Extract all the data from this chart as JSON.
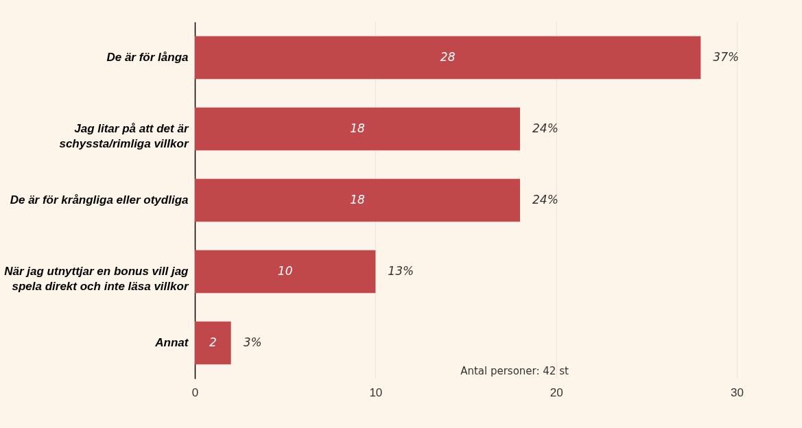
{
  "chart_data": {
    "type": "bar",
    "orientation": "horizontal",
    "categories": [
      "De är för långa",
      "Jag litar på att det är schyssta/rimliga villkor",
      "De är för krångliga eller otydliga",
      "När jag utnyttjar en bonus vill jag spela direkt och inte läsa villkor",
      "Annat"
    ],
    "values": [
      28,
      18,
      18,
      10,
      2
    ],
    "color": "#c0474a",
    "xlim": [
      0,
      30
    ],
    "xticks": [
      0,
      10,
      20,
      30
    ],
    "grid": "x",
    "data_labels": true,
    "annotations": [
      {
        "text": "37%",
        "x": 28,
        "y": "De är för långa"
      },
      {
        "text": "24%",
        "x": 18,
        "y": "Jag litar på att det är schyssta/rimliga villkor"
      },
      {
        "text": "24%",
        "x": 18,
        "y": "De är för krångliga eller otydliga"
      },
      {
        "text": "13%",
        "x": 10,
        "y": "När jag utnyttjar en bonus vill jag spela direkt och inte läsa villkor"
      },
      {
        "text": "3%",
        "x": 2,
        "y": "Annat"
      },
      "Antal personer: 42 st"
    ]
  }
}
